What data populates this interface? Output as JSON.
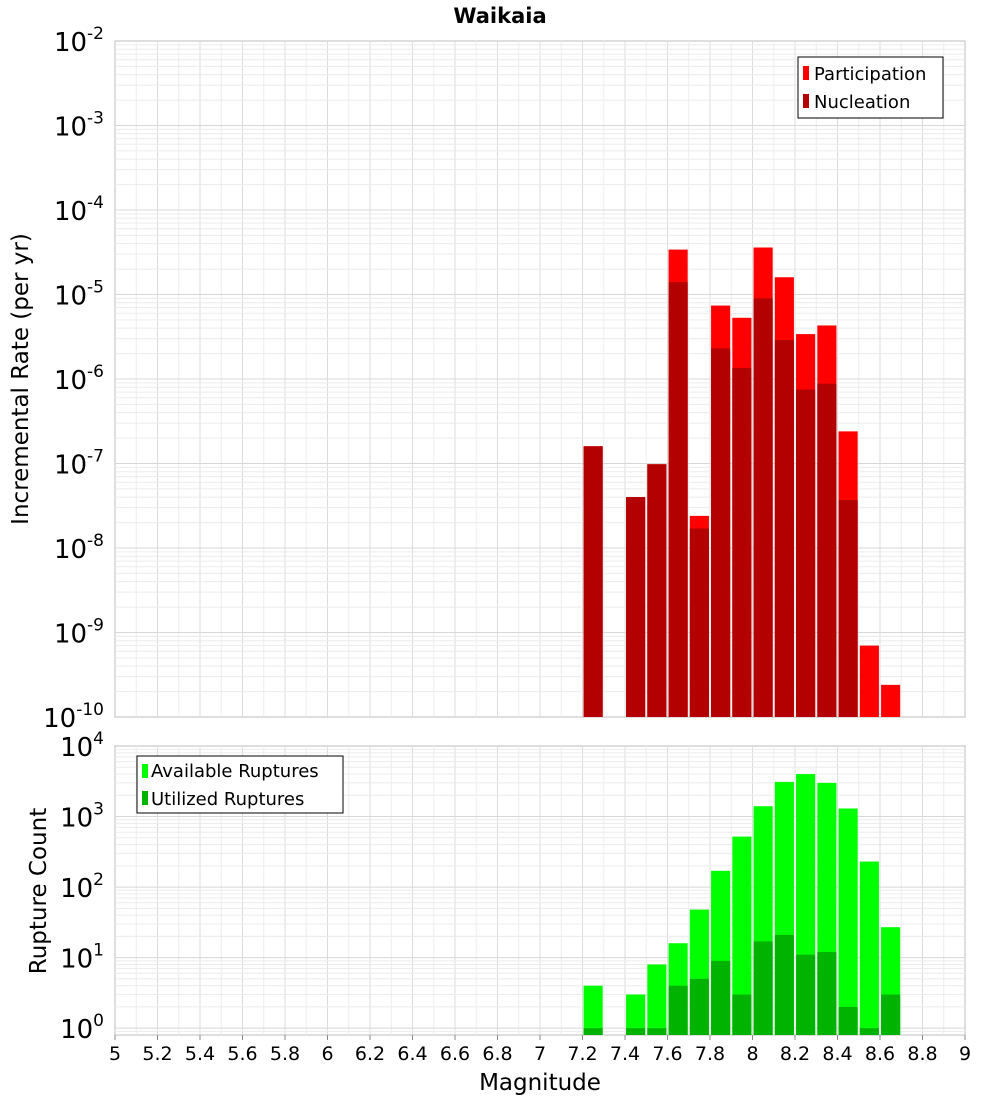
{
  "chart_data": [
    {
      "type": "bar",
      "title": "Waikaia",
      "ylabel": "Incremental Rate (per yr)",
      "yscale": "log",
      "ylim": [
        1e-10,
        0.01
      ],
      "y_tick_exponents": [
        -10,
        -9,
        -8,
        -7,
        -6,
        -5,
        -4,
        -3,
        -2
      ],
      "xlim": [
        5,
        9
      ],
      "grid": true,
      "legend_position": "top-right",
      "bar_width": 0.09,
      "series": [
        {
          "name": "Participation",
          "color": "#ff0000",
          "x": [
            7.25,
            7.45,
            7.55,
            7.65,
            7.75,
            7.85,
            7.95,
            8.05,
            8.15,
            8.25,
            8.35,
            8.45,
            8.55,
            8.65
          ],
          "values": [
            1.6e-07,
            4e-08,
            9.8e-08,
            3.4e-05,
            2.4e-08,
            7.4e-06,
            5.3e-06,
            3.6e-05,
            1.6e-05,
            3.4e-06,
            4.3e-06,
            2.4e-07,
            7e-10,
            2.4e-10
          ]
        },
        {
          "name": "Nucleation",
          "color": "#b30000",
          "x": [
            7.25,
            7.45,
            7.55,
            7.65,
            7.75,
            7.85,
            7.95,
            8.05,
            8.15,
            8.25,
            8.35,
            8.45
          ],
          "values": [
            1.6e-07,
            4e-08,
            9.8e-08,
            1.4e-05,
            1.7e-08,
            2.3e-06,
            1.35e-06,
            9e-06,
            2.9e-06,
            7.5e-07,
            8.8e-07,
            3.7e-08
          ]
        }
      ]
    },
    {
      "type": "bar",
      "xlabel": "Magnitude",
      "ylabel": "Rupture Count",
      "yscale": "log",
      "ylim": [
        0.8,
        10000
      ],
      "y_tick_exponents": [
        0,
        1,
        2,
        3,
        4
      ],
      "xlim": [
        5,
        9
      ],
      "x_ticks": [
        "5",
        "5.2",
        "5.4",
        "5.6",
        "5.8",
        "6",
        "6.2",
        "6.4",
        "6.6",
        "6.8",
        "7",
        "7.2",
        "7.4",
        "7.6",
        "7.8",
        "8",
        "8.2",
        "8.4",
        "8.6",
        "8.8",
        "9"
      ],
      "grid": true,
      "legend_position": "top-left",
      "bar_width": 0.09,
      "series": [
        {
          "name": "Available Ruptures",
          "color": "#00ff00",
          "x": [
            7.25,
            7.45,
            7.55,
            7.65,
            7.75,
            7.85,
            7.95,
            8.05,
            8.15,
            8.25,
            8.35,
            8.45,
            8.55,
            8.65
          ],
          "values": [
            4,
            3,
            8,
            16,
            48,
            170,
            520,
            1400,
            3100,
            4000,
            3000,
            1300,
            230,
            27
          ]
        },
        {
          "name": "Utilized Ruptures",
          "color": "#00b300",
          "x": [
            7.25,
            7.45,
            7.55,
            7.65,
            7.75,
            7.85,
            7.95,
            8.05,
            8.15,
            8.25,
            8.35,
            8.45,
            8.55,
            8.65
          ],
          "values": [
            1,
            1,
            1,
            4,
            5,
            9,
            3,
            17,
            21,
            11,
            12,
            2,
            1,
            3
          ]
        }
      ]
    }
  ]
}
